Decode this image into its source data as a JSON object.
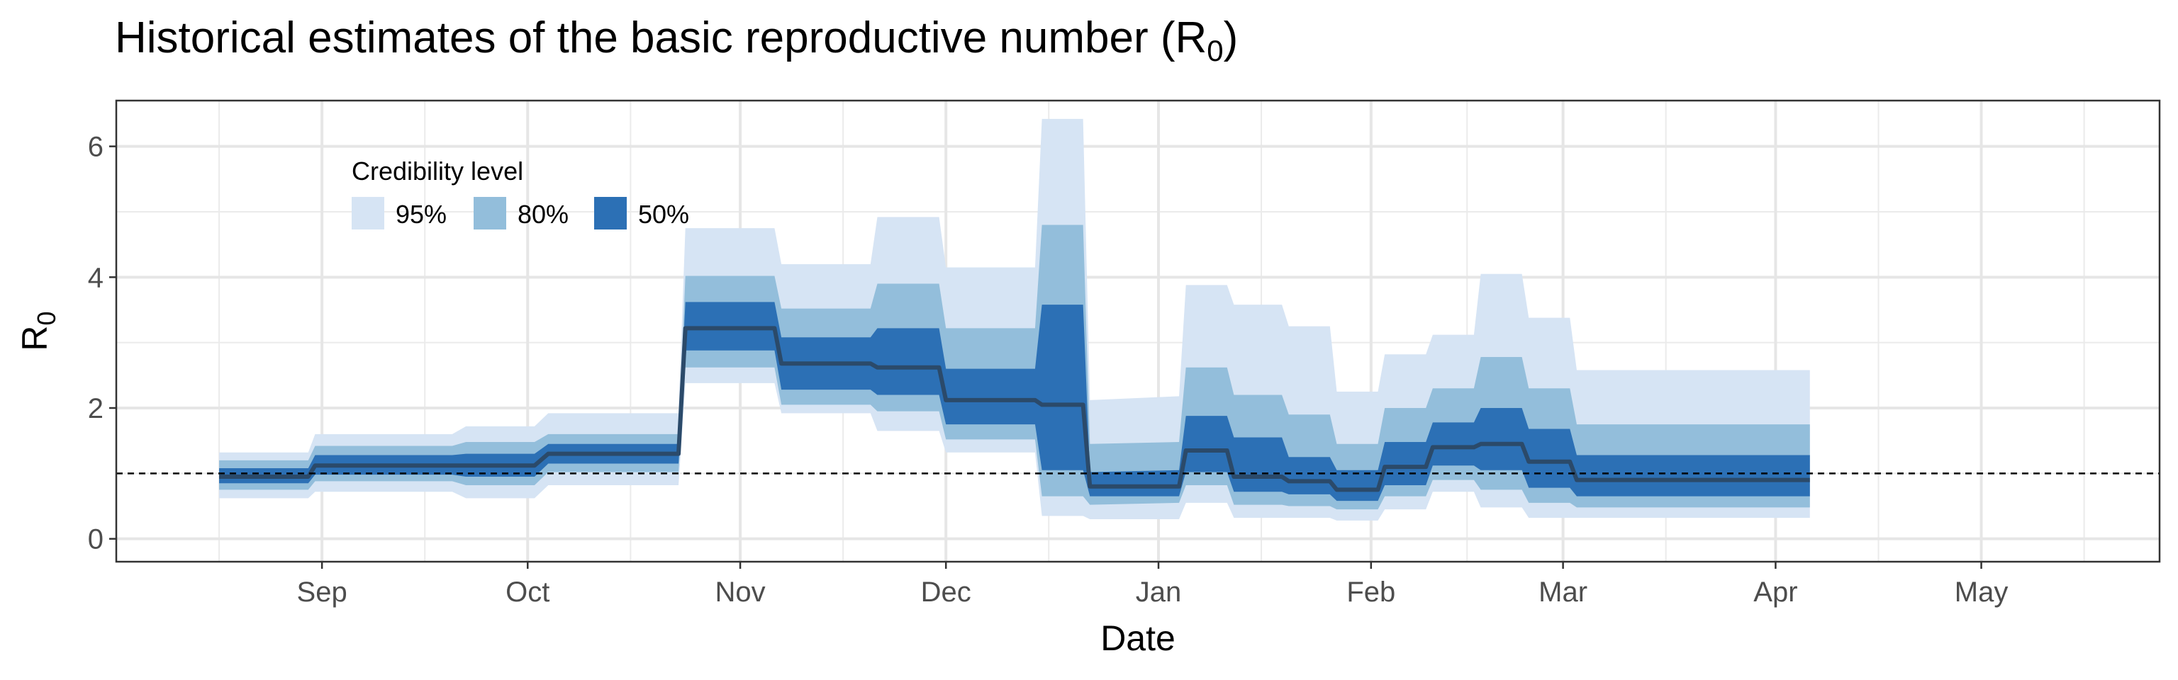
{
  "title": {
    "text": "Historical estimates of the basic reproductive number (R",
    "subscript": "0",
    "suffix": ")"
  },
  "chart_data": {
    "type": "area",
    "title": "Historical estimates of the basic reproductive number (R0)",
    "xlabel": "Date",
    "ylabel": "R0",
    "ylabel_main": "R",
    "ylabel_sub": "0",
    "ylim": [
      -0.35,
      6.7
    ],
    "yticks": [
      0,
      2,
      4,
      6
    ],
    "xlim": [
      "2020-08-02",
      "2021-05-27"
    ],
    "xticks": [
      {
        "date": "2020-09-01",
        "label": "Sep"
      },
      {
        "date": "2020-10-01",
        "label": "Oct"
      },
      {
        "date": "2020-11-01",
        "label": "Nov"
      },
      {
        "date": "2020-12-01",
        "label": "Dec"
      },
      {
        "date": "2021-01-01",
        "label": "Jan"
      },
      {
        "date": "2021-02-01",
        "label": "Feb"
      },
      {
        "date": "2021-03-01",
        "label": "Mar"
      },
      {
        "date": "2021-04-01",
        "label": "Apr"
      },
      {
        "date": "2021-05-01",
        "label": "May"
      }
    ],
    "grid": true,
    "reference_line": {
      "y": 1,
      "style": "dashed"
    },
    "legend": {
      "title": "Credibility level",
      "position": "top-left",
      "items": [
        {
          "label": "95%",
          "color": "#d6e4f4"
        },
        {
          "label": "80%",
          "color": "#93bedb"
        },
        {
          "label": "50%",
          "color": "#2c70b5"
        }
      ]
    },
    "colors": {
      "band95": "#d6e4f4",
      "band80": "#93bedb",
      "band50": "#2c70b5",
      "median": "#2b4a6a"
    },
    "series": [
      {
        "x": "2020-08-17",
        "median": 0.95,
        "lo50": 0.85,
        "hi50": 1.08,
        "lo80": 0.75,
        "hi80": 1.2,
        "lo95": 0.62,
        "hi95": 1.32
      },
      {
        "x": "2020-08-30",
        "median": 0.95,
        "lo50": 0.85,
        "hi50": 1.08,
        "lo80": 0.75,
        "hi80": 1.2,
        "lo95": 0.62,
        "hi95": 1.32
      },
      {
        "x": "2020-08-31",
        "median": 1.12,
        "lo50": 0.98,
        "hi50": 1.28,
        "lo80": 0.88,
        "hi80": 1.42,
        "lo95": 0.72,
        "hi95": 1.6
      },
      {
        "x": "2020-09-20",
        "median": 1.12,
        "lo50": 0.98,
        "hi50": 1.28,
        "lo80": 0.88,
        "hi80": 1.42,
        "lo95": 0.72,
        "hi95": 1.6
      },
      {
        "x": "2020-09-22",
        "median": 1.12,
        "lo50": 0.95,
        "hi50": 1.3,
        "lo80": 0.82,
        "hi80": 1.48,
        "lo95": 0.62,
        "hi95": 1.72
      },
      {
        "x": "2020-10-02",
        "median": 1.12,
        "lo50": 0.95,
        "hi50": 1.3,
        "lo80": 0.82,
        "hi80": 1.48,
        "lo95": 0.62,
        "hi95": 1.72
      },
      {
        "x": "2020-10-04",
        "median": 1.3,
        "lo50": 1.15,
        "hi50": 1.45,
        "lo80": 1.02,
        "hi80": 1.6,
        "lo95": 0.82,
        "hi95": 1.92
      },
      {
        "x": "2020-10-23",
        "median": 1.3,
        "lo50": 1.15,
        "hi50": 1.45,
        "lo80": 1.02,
        "hi80": 1.6,
        "lo95": 0.82,
        "hi95": 1.92
      },
      {
        "x": "2020-10-24",
        "median": 3.22,
        "lo50": 2.88,
        "hi50": 3.62,
        "lo80": 2.62,
        "hi80": 4.02,
        "lo95": 2.38,
        "hi95": 4.75
      },
      {
        "x": "2020-11-06",
        "median": 3.22,
        "lo50": 2.88,
        "hi50": 3.62,
        "lo80": 2.62,
        "hi80": 4.02,
        "lo95": 2.38,
        "hi95": 4.75
      },
      {
        "x": "2020-11-07",
        "median": 2.68,
        "lo50": 2.28,
        "hi50": 3.08,
        "lo80": 2.05,
        "hi80": 3.52,
        "lo95": 1.92,
        "hi95": 4.2
      },
      {
        "x": "2020-11-20",
        "median": 2.68,
        "lo50": 2.28,
        "hi50": 3.08,
        "lo80": 2.05,
        "hi80": 3.52,
        "lo95": 1.92,
        "hi95": 4.2
      },
      {
        "x": "2020-11-21",
        "median": 2.62,
        "lo50": 2.2,
        "hi50": 3.22,
        "lo80": 1.95,
        "hi80": 3.9,
        "lo95": 1.65,
        "hi95": 4.92
      },
      {
        "x": "2020-11-30",
        "median": 2.62,
        "lo50": 2.2,
        "hi50": 3.22,
        "lo80": 1.95,
        "hi80": 3.9,
        "lo95": 1.65,
        "hi95": 4.92
      },
      {
        "x": "2020-12-01",
        "median": 2.12,
        "lo50": 1.75,
        "hi50": 2.6,
        "lo80": 1.52,
        "hi80": 3.22,
        "lo95": 1.32,
        "hi95": 4.15
      },
      {
        "x": "2020-12-14",
        "median": 2.12,
        "lo50": 1.75,
        "hi50": 2.6,
        "lo80": 1.52,
        "hi80": 3.22,
        "lo95": 1.32,
        "hi95": 4.15
      },
      {
        "x": "2020-12-15",
        "median": 2.05,
        "lo50": 1.05,
        "hi50": 3.58,
        "lo80": 0.65,
        "hi80": 4.8,
        "lo95": 0.35,
        "hi95": 6.42
      },
      {
        "x": "2020-12-21",
        "median": 2.05,
        "lo50": 1.05,
        "hi50": 3.58,
        "lo80": 0.65,
        "hi80": 4.8,
        "lo95": 0.35,
        "hi95": 6.42
      },
      {
        "x": "2020-12-22",
        "median": 0.8,
        "lo50": 0.65,
        "hi50": 1.02,
        "lo80": 0.52,
        "hi80": 1.45,
        "lo95": 0.3,
        "hi95": 2.12
      },
      {
        "x": "2021-01-04",
        "median": 0.8,
        "lo50": 0.65,
        "hi50": 1.05,
        "lo80": 0.55,
        "hi80": 1.48,
        "lo95": 0.3,
        "hi95": 2.18
      },
      {
        "x": "2021-01-05",
        "median": 1.35,
        "lo50": 1.02,
        "hi50": 1.88,
        "lo80": 0.82,
        "hi80": 2.62,
        "lo95": 0.55,
        "hi95": 3.88
      },
      {
        "x": "2021-01-11",
        "median": 1.35,
        "lo50": 1.02,
        "hi50": 1.88,
        "lo80": 0.82,
        "hi80": 2.62,
        "lo95": 0.55,
        "hi95": 3.88
      },
      {
        "x": "2021-01-12",
        "median": 0.95,
        "lo50": 0.72,
        "hi50": 1.55,
        "lo80": 0.52,
        "hi80": 2.2,
        "lo95": 0.32,
        "hi95": 3.58
      },
      {
        "x": "2021-01-19",
        "median": 0.95,
        "lo50": 0.72,
        "hi50": 1.55,
        "lo80": 0.52,
        "hi80": 2.2,
        "lo95": 0.32,
        "hi95": 3.58
      },
      {
        "x": "2021-01-20",
        "median": 0.88,
        "lo50": 0.68,
        "hi50": 1.25,
        "lo80": 0.5,
        "hi80": 1.9,
        "lo95": 0.32,
        "hi95": 3.25
      },
      {
        "x": "2021-01-26",
        "median": 0.88,
        "lo50": 0.68,
        "hi50": 1.25,
        "lo80": 0.5,
        "hi80": 1.9,
        "lo95": 0.32,
        "hi95": 3.25
      },
      {
        "x": "2021-01-27",
        "median": 0.75,
        "lo50": 0.58,
        "hi50": 1.05,
        "lo80": 0.45,
        "hi80": 1.45,
        "lo95": 0.28,
        "hi95": 2.25
      },
      {
        "x": "2021-02-02",
        "median": 0.75,
        "lo50": 0.58,
        "hi50": 1.05,
        "lo80": 0.45,
        "hi80": 1.45,
        "lo95": 0.28,
        "hi95": 2.25
      },
      {
        "x": "2021-02-03",
        "median": 1.1,
        "lo50": 0.82,
        "hi50": 1.48,
        "lo80": 0.65,
        "hi80": 2.0,
        "lo95": 0.45,
        "hi95": 2.82
      },
      {
        "x": "2021-02-09",
        "median": 1.1,
        "lo50": 0.82,
        "hi50": 1.48,
        "lo80": 0.65,
        "hi80": 2.0,
        "lo95": 0.45,
        "hi95": 2.82
      },
      {
        "x": "2021-02-10",
        "median": 1.4,
        "lo50": 1.12,
        "hi50": 1.78,
        "lo80": 0.9,
        "hi80": 2.3,
        "lo95": 0.72,
        "hi95": 3.12
      },
      {
        "x": "2021-02-16",
        "median": 1.4,
        "lo50": 1.12,
        "hi50": 1.78,
        "lo80": 0.9,
        "hi80": 2.3,
        "lo95": 0.72,
        "hi95": 3.12
      },
      {
        "x": "2021-02-17",
        "median": 1.45,
        "lo50": 1.05,
        "hi50": 2.0,
        "lo80": 0.75,
        "hi80": 2.78,
        "lo95": 0.48,
        "hi95": 4.05
      },
      {
        "x": "2021-02-23",
        "median": 1.45,
        "lo50": 1.05,
        "hi50": 2.0,
        "lo80": 0.75,
        "hi80": 2.78,
        "lo95": 0.48,
        "hi95": 4.05
      },
      {
        "x": "2021-02-24",
        "median": 1.18,
        "lo50": 0.78,
        "hi50": 1.68,
        "lo80": 0.55,
        "hi80": 2.3,
        "lo95": 0.32,
        "hi95": 3.38
      },
      {
        "x": "2021-03-02",
        "median": 1.18,
        "lo50": 0.78,
        "hi50": 1.68,
        "lo80": 0.55,
        "hi80": 2.3,
        "lo95": 0.32,
        "hi95": 3.38
      },
      {
        "x": "2021-03-03",
        "median": 0.9,
        "lo50": 0.65,
        "hi50": 1.28,
        "lo80": 0.48,
        "hi80": 1.75,
        "lo95": 0.32,
        "hi95": 2.58
      },
      {
        "x": "2021-04-06",
        "median": 0.9,
        "lo50": 0.65,
        "hi50": 1.28,
        "lo80": 0.48,
        "hi80": 1.75,
        "lo95": 0.32,
        "hi95": 2.58
      }
    ]
  }
}
